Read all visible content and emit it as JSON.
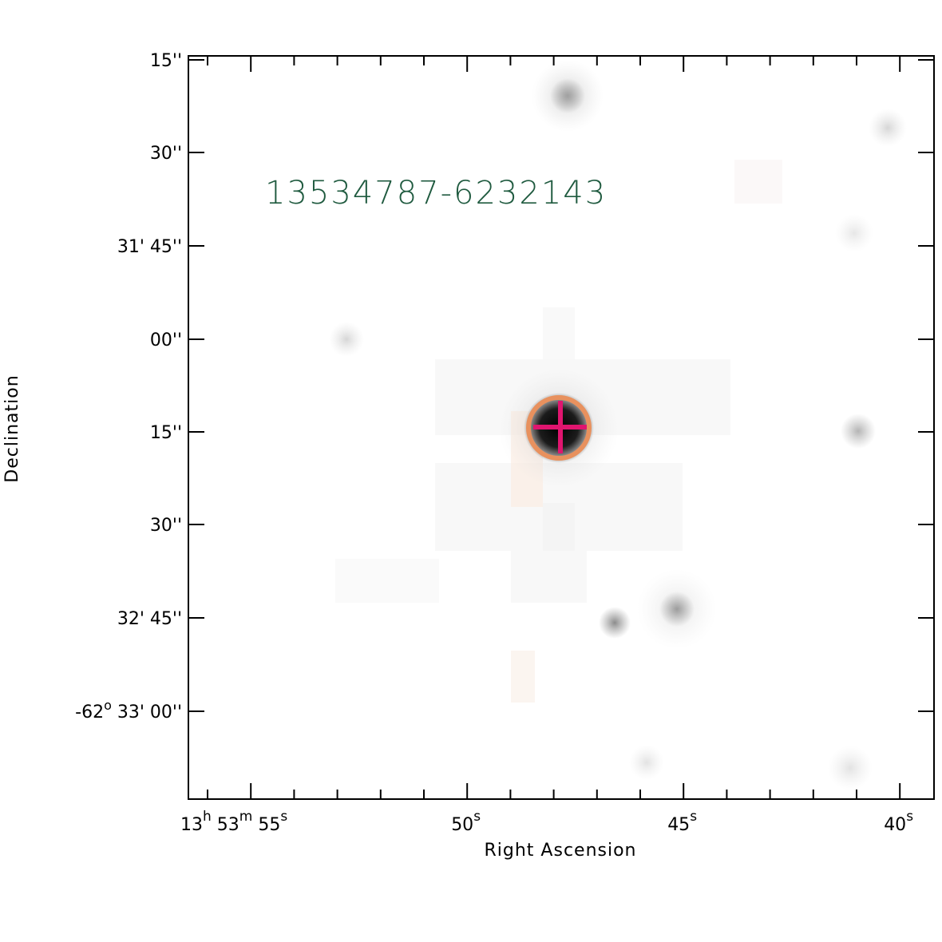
{
  "figure": {
    "object_label": "13534787-6232143",
    "label_color": "#1f5a3f",
    "xlabel": "Right Ascension",
    "ylabel": "Declination",
    "marker_circle_color": "#e8915e",
    "marker_cross_color": "#e0156f"
  },
  "ra_labels": [
    {
      "h": "13",
      "hu": "h",
      "m": "53",
      "mu": "m",
      "s": "55",
      "su": "s"
    },
    {
      "s": "50",
      "su": "s"
    },
    {
      "s": "45",
      "su": "s"
    },
    {
      "s": "40",
      "su": "s"
    }
  ],
  "dec_labels": [
    {
      "text": "15''"
    },
    {
      "text": "30''"
    },
    {
      "text": "31' 45''"
    },
    {
      "text": "00''"
    },
    {
      "text": "15''"
    },
    {
      "text": "30''"
    },
    {
      "text": "32' 45''"
    },
    {
      "deg": "-62",
      "du": "o",
      "text": "33' 00''"
    }
  ]
}
